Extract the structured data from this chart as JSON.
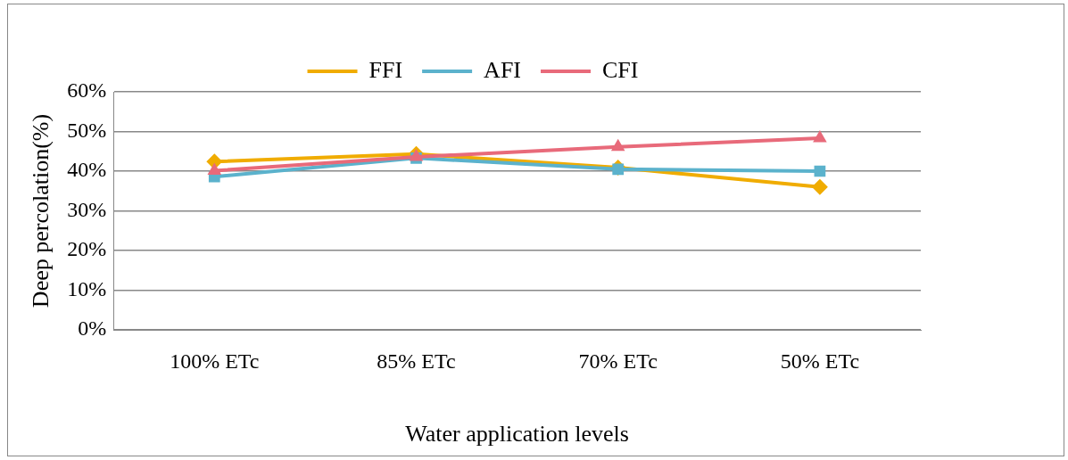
{
  "chart_data": {
    "type": "line",
    "xlabel": "Water application levels",
    "ylabel": "Deep percolation(%)",
    "categories": [
      "100% ETc",
      "85% ETc",
      "70% ETc",
      "50% ETc"
    ],
    "series": [
      {
        "name": "FFI",
        "color": "#f0ac00",
        "marker": "diamond",
        "values": [
          42.4,
          44.3,
          40.9,
          36.0
        ]
      },
      {
        "name": "AFI",
        "color": "#5bb2cc",
        "marker": "square",
        "values": [
          38.6,
          43.3,
          40.5,
          40.0
        ]
      },
      {
        "name": "CFI",
        "color": "#e86a7a",
        "marker": "triangle",
        "values": [
          40.1,
          43.6,
          46.1,
          48.3
        ]
      }
    ],
    "ylim": [
      0,
      60
    ],
    "yticks": [
      {
        "value": 0,
        "label": "0%"
      },
      {
        "value": 10,
        "label": "10%"
      },
      {
        "value": 20,
        "label": "20%"
      },
      {
        "value": 30,
        "label": "30%"
      },
      {
        "value": 40,
        "label": "40%"
      },
      {
        "value": 50,
        "label": "50%"
      },
      {
        "value": 60,
        "label": "60%"
      }
    ],
    "grid": "y",
    "legend": "top",
    "line_style": "solid"
  }
}
